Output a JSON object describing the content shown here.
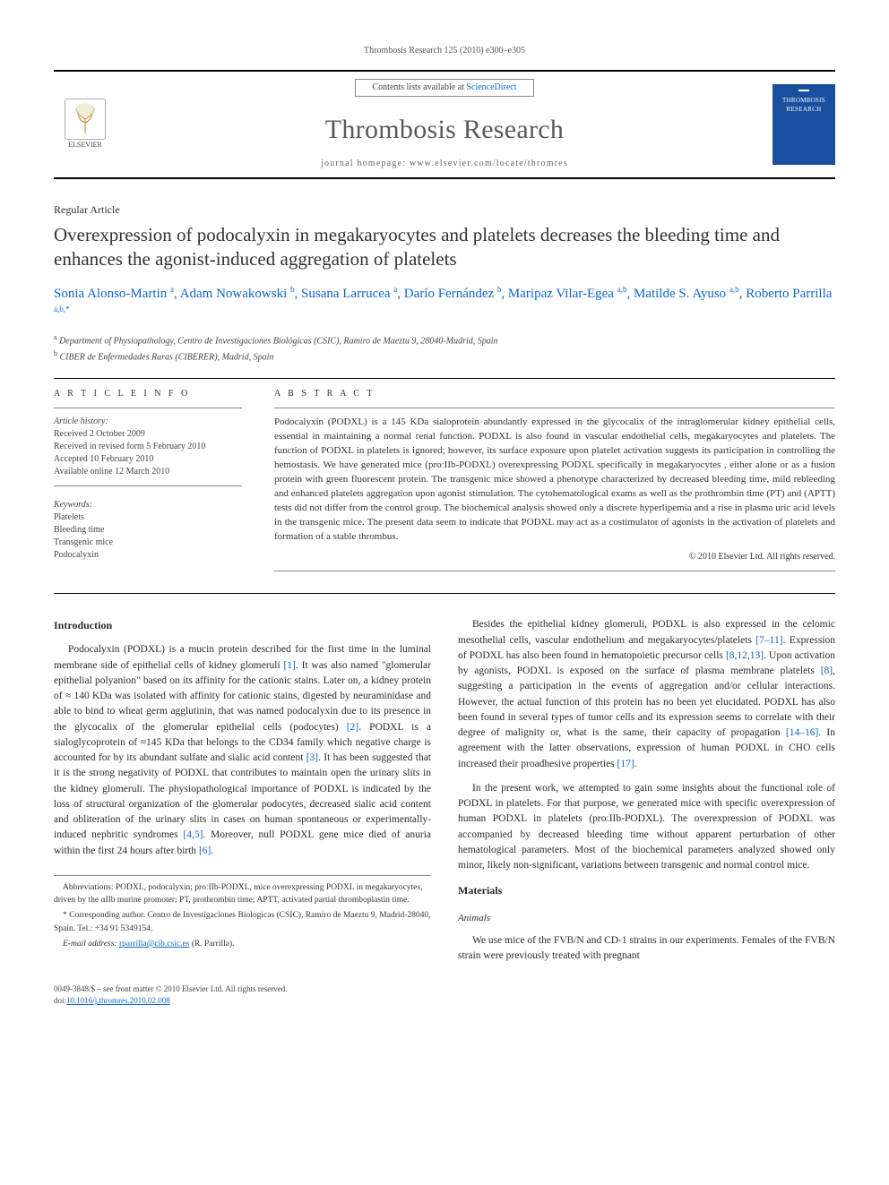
{
  "running_head": "Thrombosis Research 125 (2010) e300–e305",
  "masthead": {
    "contents_prefix": "Contents lists available at ",
    "contents_link": "ScienceDirect",
    "journal": "Thrombosis Research",
    "homepage_prefix": "journal homepage: ",
    "homepage": "www.elsevier.com/locate/thromres",
    "elsevier": "ELSEVIER",
    "cover_label": "THROMBOSIS RESEARCH"
  },
  "article_type": "Regular Article",
  "title": "Overexpression of podocalyxin in megakaryocytes and platelets decreases the bleeding time and enhances the agonist-induced aggregation of platelets",
  "authors": [
    {
      "name": "Sonia Alonso-Martin",
      "aff": "a"
    },
    {
      "name": "Adam Nowakowski",
      "aff": "b"
    },
    {
      "name": "Susana Larrucea",
      "aff": "a"
    },
    {
      "name": "Darío Fernández",
      "aff": "b"
    },
    {
      "name": "Maripaz Vilar-Egea",
      "aff": "a,b"
    },
    {
      "name": "Matilde S. Ayuso",
      "aff": "a,b"
    },
    {
      "name": "Roberto Parrilla",
      "aff": "a,b,*"
    }
  ],
  "affiliations": [
    {
      "key": "a",
      "text": "Department of Physiopathology, Centro de Investigaciones Biológicas (CSIC), Ramiro de Maeztu 9, 28040-Madrid, Spain"
    },
    {
      "key": "b",
      "text": "CIBER de Enfermedades Raras (CIBERER), Madrid, Spain"
    }
  ],
  "info_head": "A R T I C L E   I N F O",
  "abstract_head": "A B S T R A C T",
  "history": {
    "label": "Article history:",
    "lines": [
      "Received 2 October 2009",
      "Received in revised form 5 February 2010",
      "Accepted 10 February 2010",
      "Available online 12 March 2010"
    ]
  },
  "keywords_label": "Keywords:",
  "keywords": [
    "Platelets",
    "Bleeding time",
    "Transgenic mice",
    "Podocalyxin"
  ],
  "abstract": "Podocalyxin (PODXL) is a 145 KDa sialoprotein abundantly expressed in the glycocalix of the intraglomerular kidney epithelial cells, essential in maintaining a normal renal function. PODXL is also found in vascular endothelial cells, megakaryocytes and platelets. The function of PODXL in platelets is ignored; however, its surface exposure upon platelet activation suggests its participation in controlling the hemostasis. We have generated mice (proːIIb-PODXL) overexpressing PODXL specifically in megakaryocytes , either alone or as a fusion protein with green fluorescent protein. The transgenic mice showed a phenotype characterized by decreased bleeding time, mild rebleeding and enhanced platelets aggregation upon agonist stimulation. The cytohematological exams as well as the prothrombin time (PT) and (APTT) tests did not differ from the control group. The biochemical analysis showed only a discrete hyperlipemia and a rise in plasma uric acid levels in the transgenic mice. The present data seem to indicate that PODXL may act as a costimulator of agonists in the activation of platelets and formation of a stable thrombus.",
  "copyright": "© 2010 Elsevier Ltd. All rights reserved.",
  "intro_head": "Introduction",
  "intro_p1": "Podocalyxin (PODXL) is a mucin protein described for the first time in the luminal membrane side of epithelial cells of kidney glomeruli [1]. It was also named \"glomerular epithelial polyanion\" based on its affinity for the cationic stains. Later on, a kidney protein of ≈ 140 KDa was isolated with affinity for cationic stains, digested by neuraminidase and able to bind to wheat germ agglutinin, that was named podocalyxin due to its presence in the glycocalix of the glomerular epithelial cells (podocytes) [2]. PODXL is a sialoglycoprotein of ≈145 KDa that belongs to the CD34 family which negative charge is accounted for by its abundant sulfate and sialic acid content [3]. It has been suggested that it is the strong negativity of PODXL that contributes to maintain open the urinary slits in the kidney glomeruli. The physiopathological importance of PODXL is indicated by the loss of structural organization of the glomerular podocytes, decreased sialic acid content and obliteration of the urinary slits in cases on human spontaneous or experimentally-induced nephritic syndromes [4,5]. Moreover, null PODXL gene mice died of anuria within the first 24 hours after birth [6].",
  "intro_p2": "Besides the epithelial kidney glomeruli, PODXL is also expressed in the celomic mesothelial cells, vascular endothelium and megakaryocytes/platelets [7–11]. Expression of PODXL has also been found in hematopoietic precursor cells [8,12,13]. Upon activation by agonists, PODXL is exposed on the surface of plasma membrane platelets [8], suggesting a participation in the events of aggregation and/or cellular interactions. However, the actual function of this protein has no been yet elucidated. PODXL has also been found in several types of tumor cells and its expression seems to correlate with their degree of malignity or, what is the same, their capacity of propagation [14–16]. In agreement with the latter observations, expression of human PODXL in CHO cells increased their proadhesive properties [17].",
  "intro_p3": "In the present work, we attempted to gain some insights about the functional role of PODXL in platelets. For that purpose, we generated mice with specific overexpression of human PODXL in platelets (proːIIb-PODXL). The overexpression of PODXL was accompanied by decreased bleeding time without apparent perturbation of other hematological parameters. Most of the biochemical parameters analyzed showed only minor, likely non-significant, variations between transgenic and normal control mice.",
  "materials_head": "Materials",
  "animals_head": "Animals",
  "animals_p": "We use mice of the FVB/N and CD-1 strains in our experiments. Females of the FVB/N strain were previously treated with pregnant",
  "footnotes": {
    "abbrev": "Abbreviations: PODXL, podocalyxin; proːIIb-PODXL, mice overexpressing PODXL in megakaryocytes, driven by the αIIb murine promoter; PT, prothrombin time; APTT, activated partial thromboplastin time.",
    "corr": "* Corresponding author. Centro de Investigaciones Biologicas (CSIC), Ramiro de Maeztu 9, Madrid-28040, Spain. Tel.: +34 91 5349154.",
    "email_label": "E-mail address: ",
    "email": "rparrilla@cib.csic.es",
    "email_suffix": " (R. Parrilla)."
  },
  "footer": {
    "left1": "0049-3848/$ – see front matter © 2010 Elsevier Ltd. All rights reserved.",
    "left2_prefix": "doi:",
    "doi": "10.1016/j.thromres.2010.02.008"
  },
  "colors": {
    "link": "#1066c8",
    "rule": "#000000",
    "cover_bg": "#1a4e9e",
    "text": "#333333"
  }
}
